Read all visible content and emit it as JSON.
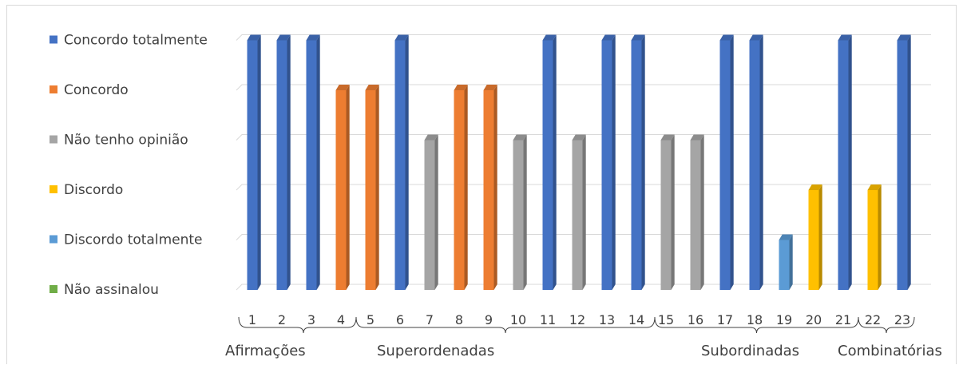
{
  "chart_data": {
    "type": "bar",
    "title": "",
    "xlabel": "",
    "ylabel": "",
    "levels": [
      "Não assinalou",
      "Discordo totalmente",
      "Discordo",
      "Não tenho opinião",
      "Concordo",
      "Concordo totalmente"
    ],
    "level_colors": [
      "#70ad47",
      "#5b9bd5",
      "#ffc000",
      "#a5a5a5",
      "#ed7d31",
      "#4472c4"
    ],
    "categories": [
      "1",
      "2",
      "3",
      "4",
      "5",
      "6",
      "7",
      "8",
      "9",
      "10",
      "11",
      "12",
      "13",
      "14",
      "15",
      "16",
      "17",
      "18",
      "19",
      "20",
      "21",
      "22",
      "23"
    ],
    "values": [
      5,
      5,
      5,
      4,
      4,
      5,
      3,
      4,
      4,
      3,
      5,
      3,
      5,
      5,
      3,
      3,
      5,
      5,
      1,
      2,
      5,
      2,
      5
    ],
    "value_labels": [
      "Concordo totalmente",
      "Concordo totalmente",
      "Concordo totalmente",
      "Concordo",
      "Concordo",
      "Concordo totalmente",
      "Não tenho opinião",
      "Concordo",
      "Concordo",
      "Não tenho opinião",
      "Concordo totalmente",
      "Não tenho opinião",
      "Concordo totalmente",
      "Concordo totalmente",
      "Não tenho opinião",
      "Não tenho opinião",
      "Concordo totalmente",
      "Concordo totalmente",
      "Discordo totalmente",
      "Discordo",
      "Concordo totalmente",
      "Discordo",
      "Concordo totalmente"
    ],
    "ylim": [
      0,
      5
    ],
    "grid": true,
    "groups": [
      {
        "label": "Afirmações",
        "from": "1",
        "to": "3"
      },
      {
        "label": "Superordenadas",
        "from": "4",
        "to": "14"
      },
      {
        "label": "Subordinadas",
        "from": "15",
        "to": "21"
      },
      {
        "label": "Combinatórias",
        "from": "22",
        "to": "23"
      }
    ]
  }
}
